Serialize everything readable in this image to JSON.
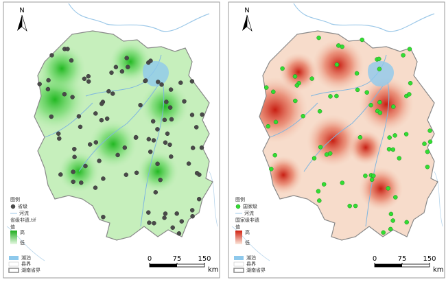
{
  "panels": [
    {
      "north": "N",
      "legend": {
        "title": "图例",
        "point": "省级",
        "river": "河流",
        "raster": "省级非遗.tif",
        "value": "值",
        "high": "高",
        "low": "低"
      },
      "footer": {
        "lake": "湖泊",
        "county": "县界",
        "boundary": "湖南省界"
      },
      "scale": {
        "ticks": [
          0,
          75,
          150
        ],
        "unit": "km"
      }
    },
    {
      "north": "N",
      "legend": {
        "title": "图例",
        "point": "国家级",
        "river": "河流",
        "raster": "国家级非遗",
        "value": "值",
        "high": "高",
        "low": "低"
      },
      "footer": {
        "lake": "湖泊",
        "county": "县界",
        "boundary": "湖南省界"
      },
      "scale": {
        "ticks": [
          0,
          75,
          150
        ],
        "unit": "km"
      }
    }
  ]
}
